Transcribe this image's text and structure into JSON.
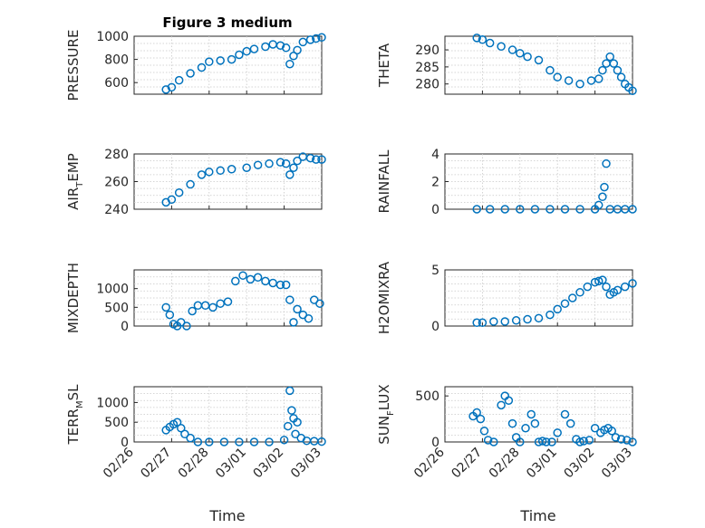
{
  "figure": {
    "title": "Figure 3 medium",
    "xlabel": "Time",
    "x_tick_labels": [
      "02/26",
      "02/27",
      "02/28",
      "03/01",
      "03/02",
      "03/03"
    ],
    "marker_color": "#0072BD"
  },
  "chart_data": [
    {
      "type": "scatter",
      "panel": "PRESSURE",
      "ylabel": [
        "PRESSURE"
      ],
      "ylim": [
        500,
        1000
      ],
      "yticks": [
        600,
        800,
        1000
      ],
      "x": [
        0.85,
        1.0,
        1.2,
        1.5,
        1.8,
        2.0,
        2.3,
        2.6,
        2.8,
        3.0,
        3.2,
        3.5,
        3.7,
        3.9,
        4.05,
        4.15,
        4.25,
        4.35,
        4.5,
        4.7,
        4.85,
        5.0
      ],
      "y": [
        540,
        560,
        620,
        680,
        730,
        780,
        790,
        800,
        840,
        870,
        890,
        910,
        930,
        920,
        900,
        760,
        830,
        880,
        950,
        970,
        980,
        990
      ]
    },
    {
      "type": "scatter",
      "panel": "THETA",
      "ylabel": [
        "THETA"
      ],
      "ylim": [
        277,
        294
      ],
      "yticks": [
        280,
        285,
        290
      ],
      "x": [
        0.85,
        1.0,
        1.2,
        1.5,
        1.8,
        2.0,
        2.2,
        2.5,
        2.8,
        3.0,
        3.3,
        3.6,
        3.9,
        4.1,
        4.2,
        4.3,
        4.4,
        4.5,
        4.6,
        4.7,
        4.8,
        4.9,
        5.0
      ],
      "y": [
        293.5,
        293,
        292,
        291,
        290,
        289,
        288,
        287,
        284,
        282,
        281,
        280,
        281,
        281.5,
        284,
        286,
        288,
        286,
        284,
        282,
        280,
        279,
        278
      ]
    },
    {
      "type": "scatter",
      "panel": "AIR_TEMP",
      "ylabel": [
        "AIR",
        "T",
        "EMP"
      ],
      "ylim": [
        240,
        280
      ],
      "yticks": [
        240,
        260,
        280
      ],
      "x": [
        0.85,
        1.0,
        1.2,
        1.5,
        1.8,
        2.0,
        2.3,
        2.6,
        3.0,
        3.3,
        3.6,
        3.9,
        4.05,
        4.15,
        4.25,
        4.35,
        4.5,
        4.7,
        4.85,
        5.0
      ],
      "y": [
        245,
        247,
        252,
        258,
        265,
        267,
        268,
        269,
        270,
        272,
        273,
        274,
        273,
        265,
        270,
        275,
        278,
        277,
        276,
        276
      ]
    },
    {
      "type": "scatter",
      "panel": "RAINFALL",
      "ylabel": [
        "RAINFALL"
      ],
      "ylim": [
        0,
        4
      ],
      "yticks": [
        0,
        2,
        4
      ],
      "x": [
        0.85,
        1.2,
        1.6,
        2.0,
        2.4,
        2.8,
        3.2,
        3.6,
        4.0,
        4.1,
        4.2,
        4.25,
        4.3,
        4.4,
        4.6,
        4.8,
        5.0
      ],
      "y": [
        0,
        0,
        0,
        0,
        0,
        0,
        0,
        0,
        0,
        0.3,
        0.9,
        1.6,
        3.3,
        0,
        0,
        0,
        0
      ]
    },
    {
      "type": "scatter",
      "panel": "MIXDEPTH",
      "ylabel": [
        "MIXDEPTH"
      ],
      "ylim": [
        0,
        1500
      ],
      "yticks": [
        0,
        500,
        1000
      ],
      "x": [
        0.85,
        0.95,
        1.05,
        1.15,
        1.25,
        1.4,
        1.55,
        1.7,
        1.9,
        2.1,
        2.3,
        2.5,
        2.7,
        2.9,
        3.1,
        3.3,
        3.5,
        3.7,
        3.9,
        4.05,
        4.15,
        4.25,
        4.35,
        4.5,
        4.65,
        4.8,
        4.95
      ],
      "y": [
        500,
        300,
        50,
        0,
        100,
        0,
        400,
        550,
        550,
        500,
        600,
        650,
        1200,
        1350,
        1250,
        1300,
        1200,
        1150,
        1100,
        1100,
        700,
        100,
        450,
        300,
        200,
        700,
        600
      ]
    },
    {
      "type": "scatter",
      "panel": "H2OMIXRA",
      "ylabel": [
        "H2OMIXRA"
      ],
      "ylim": [
        0,
        5
      ],
      "yticks": [
        0,
        5
      ],
      "x": [
        0.85,
        1.0,
        1.3,
        1.6,
        1.9,
        2.2,
        2.5,
        2.8,
        3.0,
        3.2,
        3.4,
        3.6,
        3.8,
        4.0,
        4.1,
        4.2,
        4.3,
        4.4,
        4.5,
        4.6,
        4.8,
        5.0
      ],
      "y": [
        0.3,
        0.3,
        0.4,
        0.4,
        0.5,
        0.6,
        0.7,
        1.0,
        1.5,
        2.0,
        2.5,
        3.0,
        3.5,
        3.9,
        4.0,
        4.1,
        3.5,
        2.8,
        3.0,
        3.2,
        3.5,
        3.8
      ]
    },
    {
      "type": "scatter",
      "panel": "TERR_MSL",
      "ylabel": [
        "TERR",
        "M",
        "SL"
      ],
      "ylim": [
        0,
        1400
      ],
      "yticks": [
        0,
        500,
        1000
      ],
      "x": [
        0.85,
        0.95,
        1.05,
        1.15,
        1.25,
        1.35,
        1.5,
        1.7,
        2.0,
        2.4,
        2.8,
        3.2,
        3.6,
        4.0,
        4.1,
        4.15,
        4.2,
        4.25,
        4.3,
        4.35,
        4.45,
        4.6,
        4.8,
        5.0
      ],
      "y": [
        300,
        380,
        450,
        500,
        350,
        200,
        100,
        0,
        0,
        0,
        0,
        0,
        0,
        50,
        400,
        1300,
        800,
        600,
        200,
        500,
        100,
        30,
        20,
        10
      ]
    },
    {
      "type": "scatter",
      "panel": "SUN_FLUX",
      "ylabel": [
        "SUN",
        "F",
        "LUX"
      ],
      "ylim": [
        0,
        600
      ],
      "yticks": [
        0,
        500
      ],
      "x": [
        0.75,
        0.85,
        0.95,
        1.05,
        1.15,
        1.3,
        1.5,
        1.6,
        1.7,
        1.8,
        1.9,
        2.0,
        2.15,
        2.3,
        2.4,
        2.5,
        2.6,
        2.7,
        2.85,
        3.0,
        3.2,
        3.35,
        3.5,
        3.6,
        3.7,
        3.85,
        4.0,
        4.15,
        4.25,
        4.35,
        4.45,
        4.55,
        4.7,
        4.85,
        5.0
      ],
      "y": [
        280,
        320,
        250,
        120,
        20,
        0,
        400,
        500,
        450,
        200,
        50,
        0,
        150,
        300,
        200,
        0,
        10,
        0,
        0,
        100,
        300,
        200,
        30,
        0,
        10,
        20,
        150,
        100,
        130,
        150,
        120,
        50,
        30,
        20,
        0
      ]
    }
  ]
}
